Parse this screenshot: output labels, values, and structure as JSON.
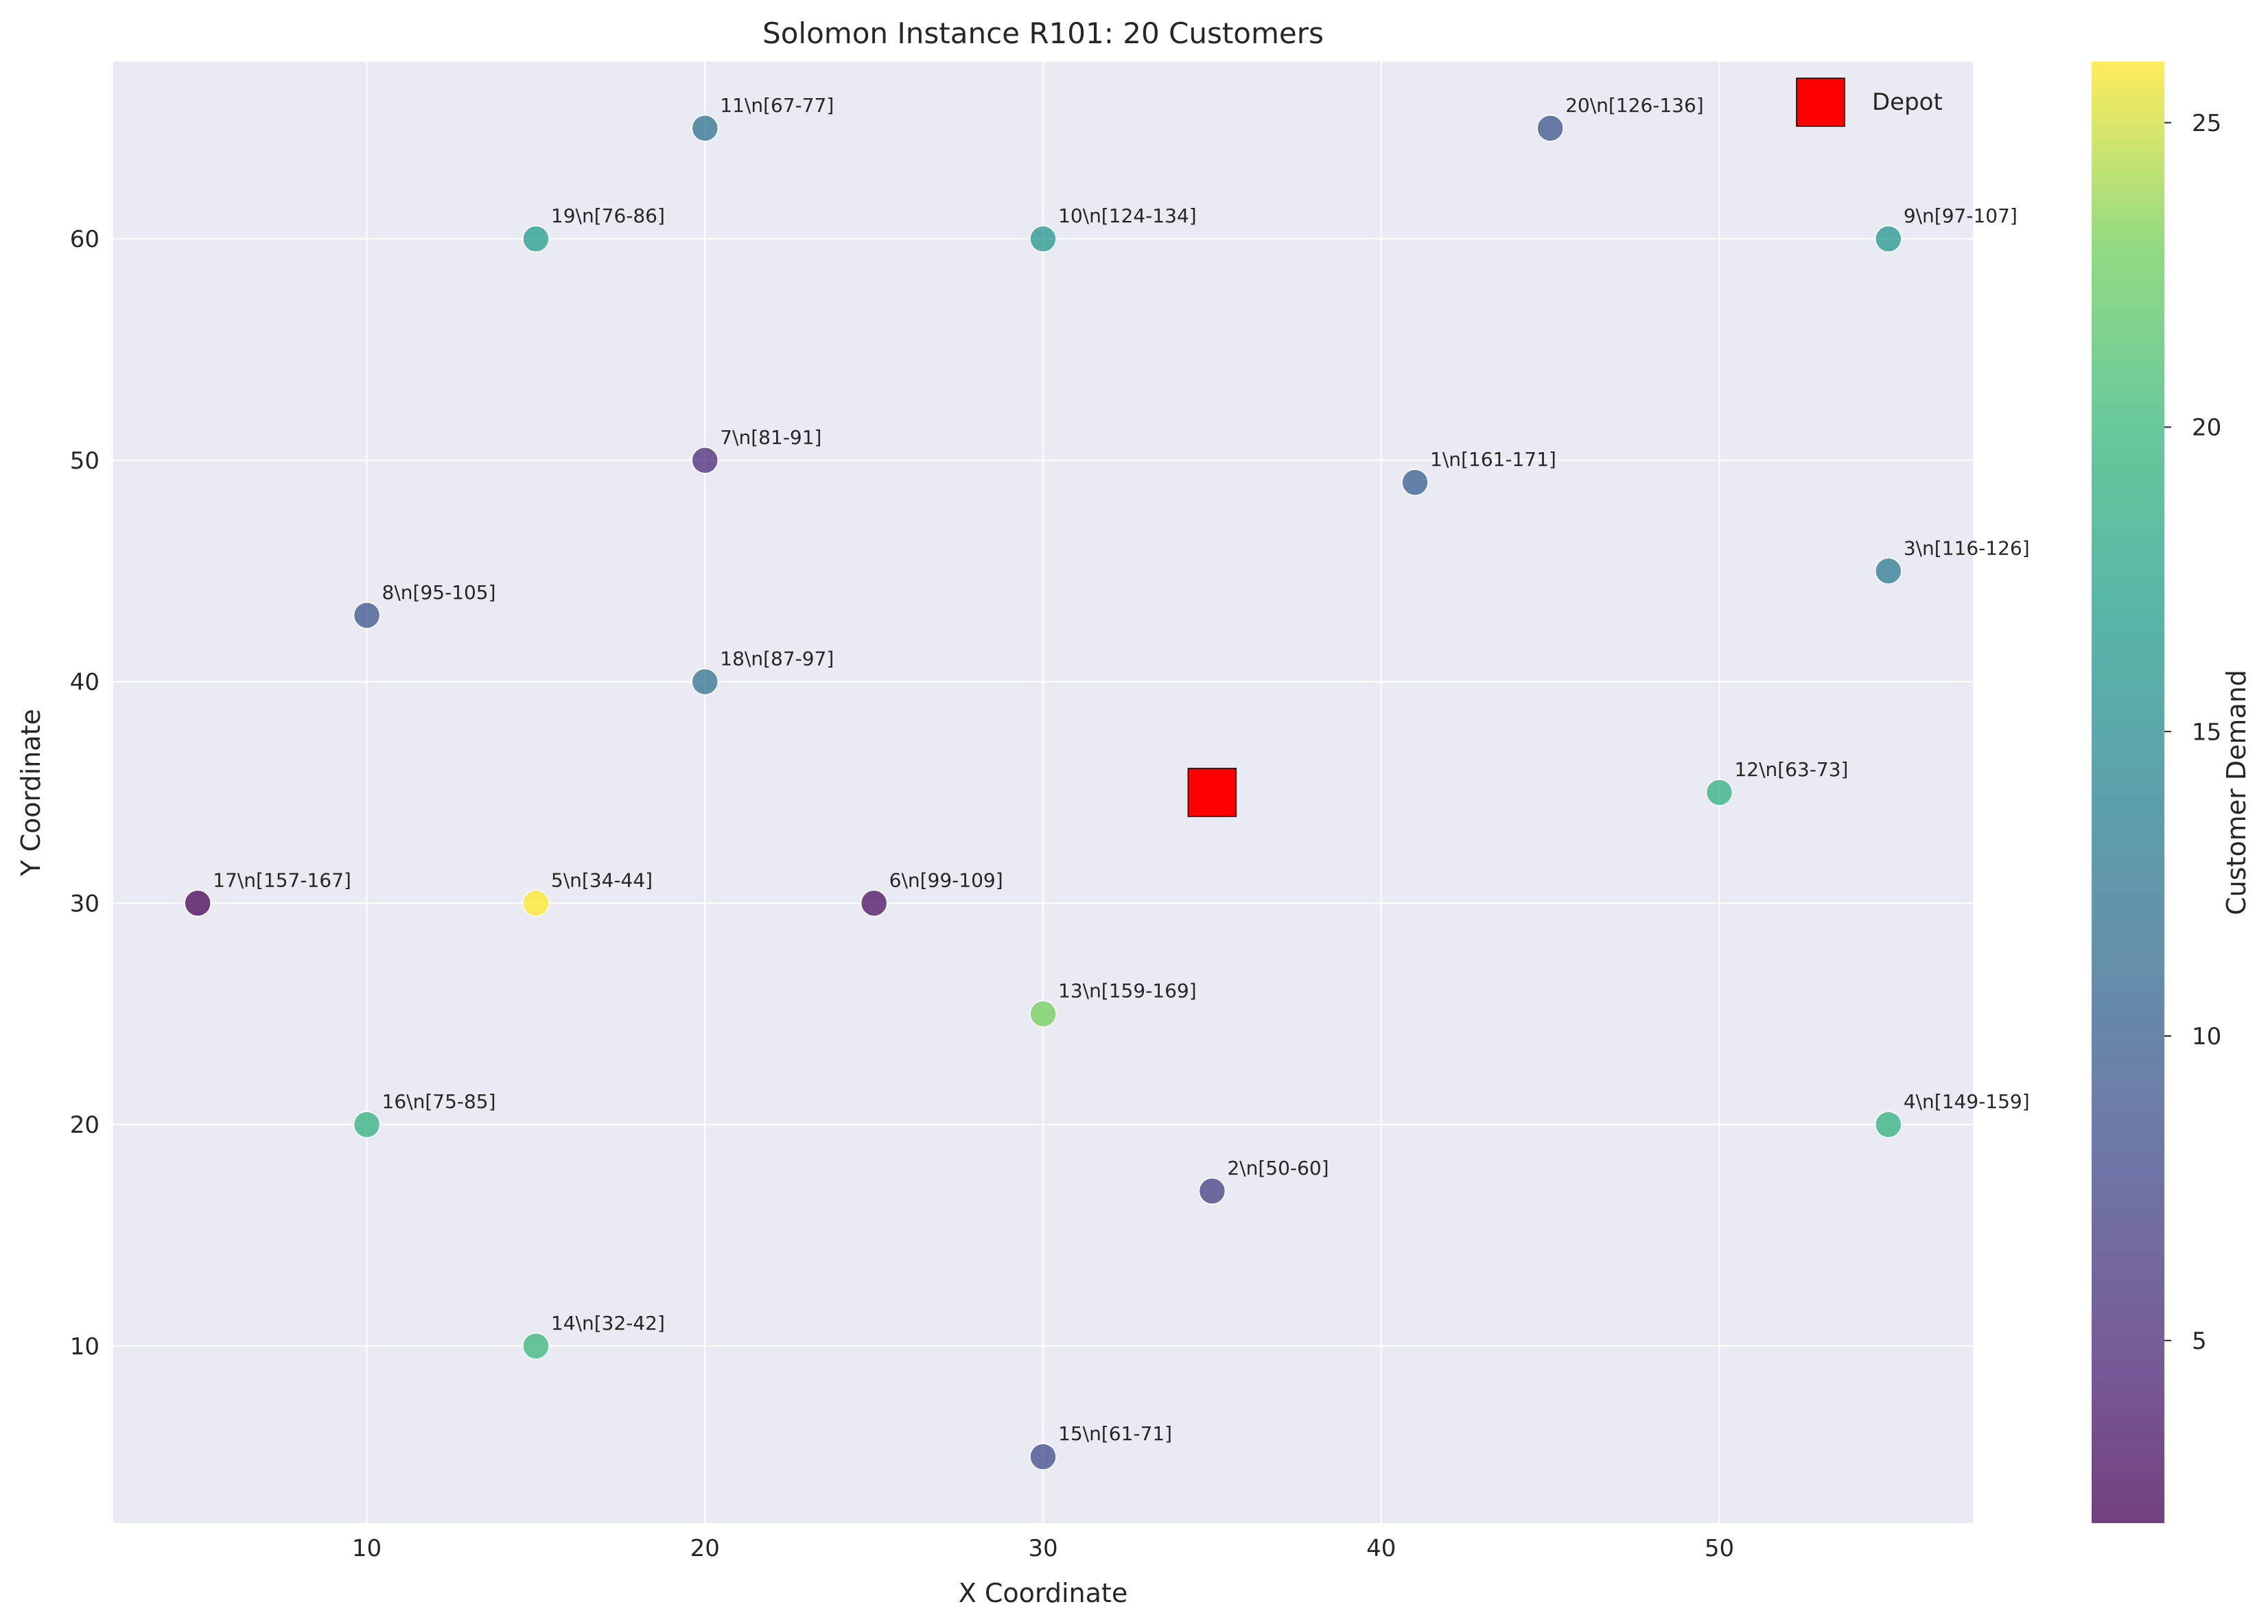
{
  "chart_data": {
    "type": "scatter",
    "title": "Solomon Instance R101: 20 Customers",
    "xlabel": "X Coordinate",
    "ylabel": "Y Coordinate",
    "xlim": [
      2.5,
      57.5
    ],
    "ylim": [
      2,
      68
    ],
    "xticks": [
      10,
      20,
      30,
      40,
      50
    ],
    "yticks": [
      10,
      20,
      30,
      40,
      50,
      60
    ],
    "grid": true,
    "colorbar": {
      "label": "Customer Demand",
      "colormap": "viridis",
      "range": [
        2,
        26
      ],
      "ticks": [
        5,
        10,
        15,
        20,
        25
      ]
    },
    "depot": {
      "x": 35,
      "y": 35,
      "color": "#ff0000"
    },
    "legend": {
      "position": "top-right",
      "entries": [
        "Depot"
      ]
    },
    "customers": [
      {
        "id": 1,
        "x": 41,
        "y": 49,
        "demand": 10,
        "label": "1\\n[161-171]"
      },
      {
        "id": 2,
        "x": 35,
        "y": 17,
        "demand": 7,
        "label": "2\\n[50-60]"
      },
      {
        "id": 3,
        "x": 55,
        "y": 45,
        "demand": 13,
        "label": "3\\n[116-126]"
      },
      {
        "id": 4,
        "x": 55,
        "y": 20,
        "demand": 19,
        "label": "4\\n[149-159]"
      },
      {
        "id": 5,
        "x": 15,
        "y": 30,
        "demand": 26,
        "label": "5\\n[34-44]"
      },
      {
        "id": 6,
        "x": 25,
        "y": 30,
        "demand": 3,
        "label": "6\\n[99-109]"
      },
      {
        "id": 7,
        "x": 20,
        "y": 50,
        "demand": 5,
        "label": "7\\n[81-91]"
      },
      {
        "id": 8,
        "x": 10,
        "y": 43,
        "demand": 9,
        "label": "8\\n[95-105]"
      },
      {
        "id": 9,
        "x": 55,
        "y": 60,
        "demand": 16,
        "label": "9\\n[97-107]"
      },
      {
        "id": 10,
        "x": 30,
        "y": 60,
        "demand": 16,
        "label": "10\\n[124-134]"
      },
      {
        "id": 11,
        "x": 20,
        "y": 65,
        "demand": 12,
        "label": "11\\n[67-77]"
      },
      {
        "id": 12,
        "x": 50,
        "y": 35,
        "demand": 19,
        "label": "12\\n[63-73]"
      },
      {
        "id": 13,
        "x": 30,
        "y": 25,
        "demand": 23,
        "label": "13\\n[159-169]"
      },
      {
        "id": 14,
        "x": 15,
        "y": 10,
        "demand": 20,
        "label": "14\\n[32-42]"
      },
      {
        "id": 15,
        "x": 30,
        "y": 5,
        "demand": 8,
        "label": "15\\n[61-71]"
      },
      {
        "id": 16,
        "x": 10,
        "y": 20,
        "demand": 19,
        "label": "16\\n[75-85]"
      },
      {
        "id": 17,
        "x": 5,
        "y": 30,
        "demand": 2,
        "label": "17\\n[157-167]"
      },
      {
        "id": 18,
        "x": 20,
        "y": 40,
        "demand": 12,
        "label": "18\\n[87-97]"
      },
      {
        "id": 19,
        "x": 15,
        "y": 60,
        "demand": 17,
        "label": "19\\n[76-86]"
      },
      {
        "id": 20,
        "x": 45,
        "y": 65,
        "demand": 9,
        "label": "20\\n[126-136]"
      }
    ]
  }
}
